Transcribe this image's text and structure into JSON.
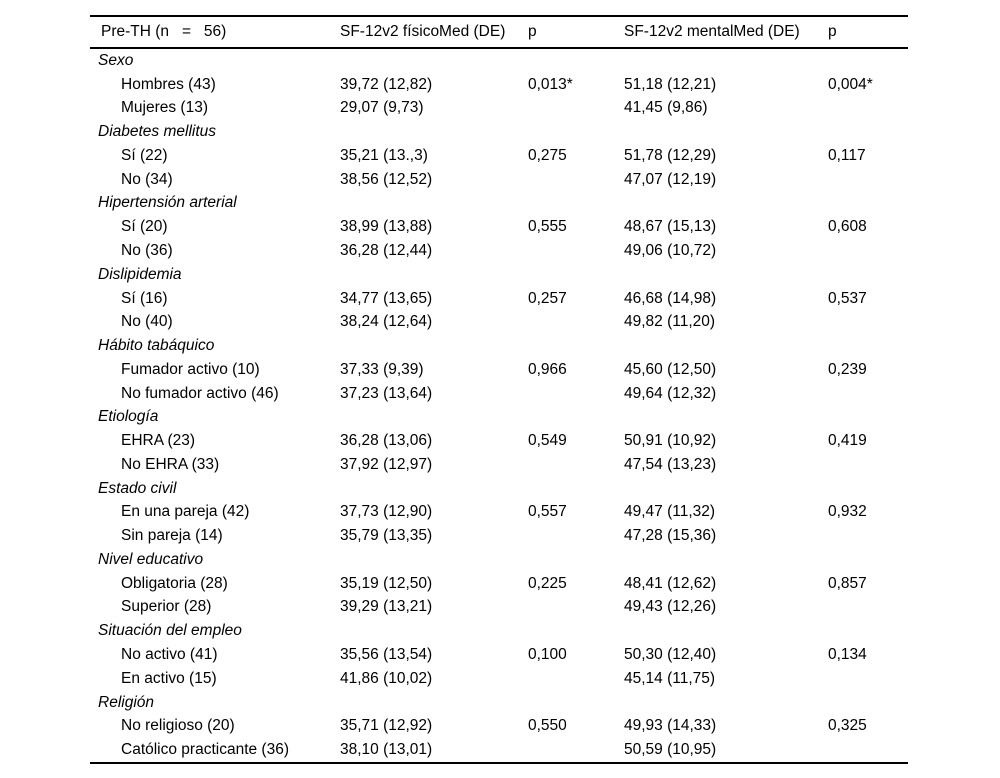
{
  "colors": {
    "background": "#ffffff",
    "text": "#000000",
    "rule": "#000000"
  },
  "table": {
    "header": {
      "col1": "Pre-TH (n   =   56)",
      "col2": "SF-12v2 físicoMed (DE)",
      "col3": "p",
      "col4": "SF-12v2 mentalMed (DE)",
      "col5": "p"
    },
    "groups": [
      {
        "category": "Sexo",
        "rows": [
          [
            "Hombres (43)",
            "39,72 (12,82)",
            "0,013*",
            "51,18 (12,21)",
            "0,004*"
          ],
          [
            "Mujeres (13)",
            "29,07 (9,73)",
            "",
            "41,45 (9,86)",
            ""
          ]
        ]
      },
      {
        "category": "Diabetes mellitus",
        "rows": [
          [
            "Sí (22)",
            "35,21 (13.,3)",
            "0,275",
            "51,78 (12,29)",
            "0,117"
          ],
          [
            "No (34)",
            "38,56 (12,52)",
            "",
            "47,07 (12,19)",
            ""
          ]
        ]
      },
      {
        "category": "Hipertensión arterial",
        "rows": [
          [
            "Sí (20)",
            "38,99 (13,88)",
            "0,555",
            "48,67 (15,13)",
            "0,608"
          ],
          [
            "No (36)",
            "36,28 (12,44)",
            "",
            "49,06 (10,72)",
            ""
          ]
        ]
      },
      {
        "category": "Dislipidemia",
        "rows": [
          [
            "Sí (16)",
            "34,77 (13,65)",
            "0,257",
            "46,68 (14,98)",
            "0,537"
          ],
          [
            "No (40)",
            "38,24 (12,64)",
            "",
            "49,82 (11,20)",
            ""
          ]
        ]
      },
      {
        "category": "Hábito tabáquico",
        "rows": [
          [
            "Fumador activo (10)",
            "37,33 (9,39)",
            "0,966",
            "45,60 (12,50)",
            "0,239"
          ],
          [
            "No fumador activo (46)",
            "37,23 (13,64)",
            "",
            "49,64 (12,32)",
            ""
          ]
        ]
      },
      {
        "category": "Etiología",
        "rows": [
          [
            "EHRA (23)",
            "36,28 (13,06)",
            "0,549",
            "50,91 (10,92)",
            "0,419"
          ],
          [
            "No EHRA (33)",
            "37,92 (12,97)",
            "",
            "47,54 (13,23)",
            ""
          ]
        ]
      },
      {
        "category": "Estado civil",
        "rows": [
          [
            "En una pareja (42)",
            "37,73 (12,90)",
            "0,557",
            "49,47 (11,32)",
            "0,932"
          ],
          [
            "Sin pareja (14)",
            "35,79 (13,35)",
            "",
            "47,28 (15,36)",
            ""
          ]
        ]
      },
      {
        "category": "Nivel educativo",
        "rows": [
          [
            "Obligatoria (28)",
            "35,19 (12,50)",
            "0,225",
            "48,41 (12,62)",
            "0,857"
          ],
          [
            "Superior (28)",
            "39,29 (13,21)",
            "",
            "49,43 (12,26)",
            ""
          ]
        ]
      },
      {
        "category": "Situación del empleo",
        "rows": [
          [
            "No activo (41)",
            "35,56 (13,54)",
            "0,100",
            "50,30 (12,40)",
            "0,134"
          ],
          [
            "En activo (15)",
            "41,86 (10,02)",
            "",
            "45,14 (11,75)",
            ""
          ]
        ]
      },
      {
        "category": "Religión",
        "rows": [
          [
            "No religioso (20)",
            "35,71 (12,92)",
            "0,550",
            "49,93 (14,33)",
            "0,325"
          ],
          [
            "Católico practicante (36)",
            "38,10 (13,01)",
            "",
            "50,59 (10,95)",
            ""
          ]
        ]
      }
    ]
  }
}
